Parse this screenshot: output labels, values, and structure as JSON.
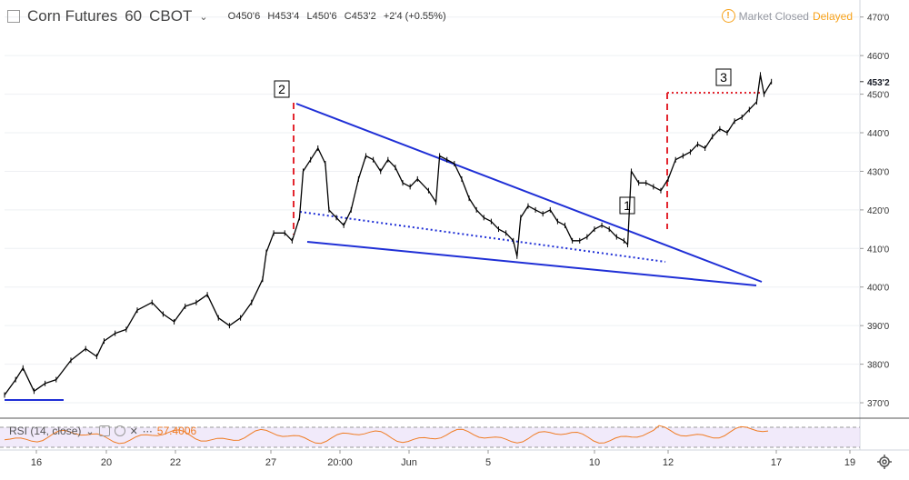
{
  "header": {
    "title": "Corn Futures",
    "interval": "60",
    "exchange": "CBOT",
    "open": "O450'6",
    "high": "H453'4",
    "low": "L450'6",
    "close": "C453'2",
    "change": "+2'4 (+0.55%)"
  },
  "status": {
    "market": "Market Closed",
    "delay": "Delayed",
    "color_delayed": "#f7a21b"
  },
  "rsi": {
    "label": "RSI (14, close)",
    "value": "57.4006",
    "color": "#f07c24",
    "band_color": "#e8dcf6"
  },
  "annotations": {
    "label1": "1",
    "label2": "2",
    "label3": "3"
  },
  "chart_data": {
    "type": "line",
    "ylim": [
      366,
      473
    ],
    "y_ticks": [
      {
        "v": 470,
        "label": "470'0"
      },
      {
        "v": 460,
        "label": "460'0"
      },
      {
        "v": 450,
        "label": "450'0"
      },
      {
        "v": 440,
        "label": "440'0"
      },
      {
        "v": 430,
        "label": "430'0"
      },
      {
        "v": 420,
        "label": "420'0"
      },
      {
        "v": 410,
        "label": "410'0"
      },
      {
        "v": 400,
        "label": "400'0"
      },
      {
        "v": 390,
        "label": "390'0"
      },
      {
        "v": 380,
        "label": "380'0"
      },
      {
        "v": 370,
        "label": "370'0"
      }
    ],
    "last_price": {
      "v": 453.25,
      "label": "453'2"
    },
    "x_ticks": [
      {
        "i": 8,
        "label": "16"
      },
      {
        "i": 27,
        "label": "20"
      },
      {
        "i": 45,
        "label": "22"
      },
      {
        "i": 71,
        "label": "27"
      },
      {
        "i": 89,
        "label": "20:00"
      },
      {
        "i": 108,
        "label": "Jun"
      },
      {
        "i": 128,
        "label": "5"
      },
      {
        "i": 156,
        "label": "10"
      },
      {
        "i": 176,
        "label": "12"
      },
      {
        "i": 225,
        "label": "17"
      },
      {
        "i": 226,
        "label": "19"
      }
    ],
    "price": [
      {
        "i": 0,
        "v": 372
      },
      {
        "i": 3,
        "v": 376
      },
      {
        "i": 5,
        "v": 379
      },
      {
        "i": 8,
        "v": 373
      },
      {
        "i": 11,
        "v": 375
      },
      {
        "i": 14,
        "v": 376
      },
      {
        "i": 18,
        "v": 381
      },
      {
        "i": 22,
        "v": 384
      },
      {
        "i": 25,
        "v": 382
      },
      {
        "i": 27,
        "v": 386
      },
      {
        "i": 30,
        "v": 388
      },
      {
        "i": 33,
        "v": 389
      },
      {
        "i": 36,
        "v": 394
      },
      {
        "i": 40,
        "v": 396
      },
      {
        "i": 43,
        "v": 393
      },
      {
        "i": 46,
        "v": 391
      },
      {
        "i": 49,
        "v": 395
      },
      {
        "i": 52,
        "v": 396
      },
      {
        "i": 55,
        "v": 398
      },
      {
        "i": 58,
        "v": 392
      },
      {
        "i": 61,
        "v": 390
      },
      {
        "i": 64,
        "v": 392
      },
      {
        "i": 67,
        "v": 396
      },
      {
        "i": 70,
        "v": 402
      },
      {
        "i": 71,
        "v": 409
      },
      {
        "i": 73,
        "v": 414
      },
      {
        "i": 76,
        "v": 414
      },
      {
        "i": 78,
        "v": 412
      },
      {
        "i": 80,
        "v": 418
      },
      {
        "i": 81,
        "v": 430
      },
      {
        "i": 83,
        "v": 433
      },
      {
        "i": 85,
        "v": 436
      },
      {
        "i": 87,
        "v": 432
      },
      {
        "i": 88,
        "v": 420
      },
      {
        "i": 90,
        "v": 418
      },
      {
        "i": 92,
        "v": 416
      },
      {
        "i": 94,
        "v": 420
      },
      {
        "i": 96,
        "v": 428
      },
      {
        "i": 98,
        "v": 434
      },
      {
        "i": 100,
        "v": 433
      },
      {
        "i": 102,
        "v": 430
      },
      {
        "i": 104,
        "v": 433
      },
      {
        "i": 106,
        "v": 431
      },
      {
        "i": 108,
        "v": 427
      },
      {
        "i": 110,
        "v": 426
      },
      {
        "i": 112,
        "v": 428
      },
      {
        "i": 115,
        "v": 425
      },
      {
        "i": 117,
        "v": 422
      },
      {
        "i": 118,
        "v": 434
      },
      {
        "i": 120,
        "v": 433
      },
      {
        "i": 122,
        "v": 432
      },
      {
        "i": 124,
        "v": 428
      },
      {
        "i": 126,
        "v": 423
      },
      {
        "i": 128,
        "v": 420
      },
      {
        "i": 130,
        "v": 418
      },
      {
        "i": 132,
        "v": 417
      },
      {
        "i": 134,
        "v": 415
      },
      {
        "i": 136,
        "v": 414
      },
      {
        "i": 138,
        "v": 412
      },
      {
        "i": 139,
        "v": 408
      },
      {
        "i": 140,
        "v": 418
      },
      {
        "i": 142,
        "v": 421
      },
      {
        "i": 144,
        "v": 420
      },
      {
        "i": 146,
        "v": 419
      },
      {
        "i": 148,
        "v": 420
      },
      {
        "i": 150,
        "v": 417
      },
      {
        "i": 152,
        "v": 416
      },
      {
        "i": 154,
        "v": 412
      },
      {
        "i": 156,
        "v": 412
      },
      {
        "i": 158,
        "v": 413
      },
      {
        "i": 160,
        "v": 415
      },
      {
        "i": 162,
        "v": 416
      },
      {
        "i": 164,
        "v": 415
      },
      {
        "i": 166,
        "v": 413
      },
      {
        "i": 168,
        "v": 412
      },
      {
        "i": 169,
        "v": 411
      },
      {
        "i": 170,
        "v": 430
      },
      {
        "i": 172,
        "v": 427
      },
      {
        "i": 174,
        "v": 427
      },
      {
        "i": 176,
        "v": 426
      },
      {
        "i": 178,
        "v": 425
      },
      {
        "i": 180,
        "v": 428
      },
      {
        "i": 182,
        "v": 433
      },
      {
        "i": 184,
        "v": 434
      },
      {
        "i": 186,
        "v": 435
      },
      {
        "i": 188,
        "v": 437
      },
      {
        "i": 190,
        "v": 436
      },
      {
        "i": 192,
        "v": 439
      },
      {
        "i": 194,
        "v": 441
      },
      {
        "i": 196,
        "v": 440
      },
      {
        "i": 198,
        "v": 443
      },
      {
        "i": 200,
        "v": 444
      },
      {
        "i": 202,
        "v": 446
      },
      {
        "i": 204,
        "v": 448
      },
      {
        "i": 205,
        "v": 455
      },
      {
        "i": 206,
        "v": 450
      },
      {
        "i": 208,
        "v": 453.25
      }
    ]
  }
}
